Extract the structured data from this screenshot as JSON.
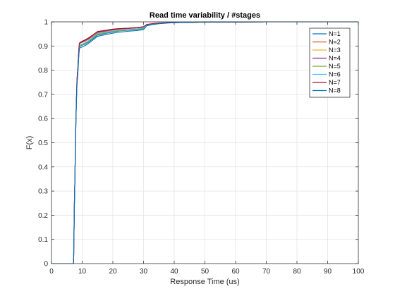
{
  "chart_data": {
    "type": "line",
    "title": "Read time variability / #stages",
    "xlabel": "Response Time (us)",
    "ylabel": "F(x)",
    "xlim": [
      0,
      100
    ],
    "ylim": [
      0,
      1
    ],
    "x_ticks": [
      0,
      10,
      20,
      30,
      40,
      50,
      60,
      70,
      80,
      90,
      100
    ],
    "y_ticks": [
      0,
      0.1,
      0.2,
      0.3,
      0.4,
      0.5,
      0.6,
      0.7,
      0.8,
      0.9,
      1
    ],
    "grid": true,
    "legend_position": "top-right",
    "series": [
      {
        "name": "N=1",
        "color": "#0072BD",
        "x": [
          0,
          7.2,
          7.5,
          7.6,
          7.9,
          8.1,
          8.3,
          8.6,
          8.9,
          9.1,
          9.4,
          10,
          11,
          12,
          13,
          14,
          15,
          18,
          20,
          22,
          25,
          28,
          30,
          31,
          33,
          35,
          38,
          40,
          45,
          50,
          60,
          70,
          80,
          90,
          100
        ],
        "y": [
          0,
          0.0,
          0.28,
          0.33,
          0.55,
          0.66,
          0.74,
          0.79,
          0.86,
          0.895,
          0.9,
          0.903,
          0.908,
          0.915,
          0.925,
          0.935,
          0.945,
          0.953,
          0.958,
          0.962,
          0.965,
          0.968,
          0.972,
          0.985,
          0.99,
          0.993,
          0.996,
          0.997,
          0.998,
          0.999,
          0.9995,
          1,
          1,
          1,
          1
        ]
      },
      {
        "name": "N=2",
        "color": "#D95319",
        "x": [
          0,
          7.2,
          7.5,
          7.6,
          7.9,
          8.1,
          8.3,
          8.6,
          8.9,
          9.1,
          9.4,
          10,
          11,
          12,
          13,
          14,
          15,
          18,
          20,
          22,
          25,
          28,
          30,
          31,
          33,
          35,
          38,
          40,
          45,
          50,
          60,
          70,
          80,
          90,
          100
        ],
        "y": [
          0,
          0.0,
          0.28,
          0.33,
          0.56,
          0.67,
          0.76,
          0.81,
          0.88,
          0.908,
          0.912,
          0.915,
          0.92,
          0.927,
          0.936,
          0.945,
          0.955,
          0.962,
          0.966,
          0.969,
          0.972,
          0.975,
          0.978,
          0.988,
          0.992,
          0.994,
          0.996,
          0.997,
          0.998,
          0.999,
          0.9995,
          1,
          1,
          1,
          1
        ]
      },
      {
        "name": "N=3",
        "color": "#EDB120",
        "x": [
          0,
          7.2,
          7.5,
          7.6,
          7.9,
          8.1,
          8.3,
          8.6,
          8.9,
          9.1,
          9.4,
          10,
          11,
          12,
          13,
          14,
          15,
          18,
          20,
          22,
          25,
          28,
          30,
          31,
          33,
          35,
          38,
          40,
          45,
          50,
          60,
          70,
          80,
          90,
          100
        ],
        "y": [
          0,
          0.0,
          0.28,
          0.33,
          0.55,
          0.665,
          0.75,
          0.8,
          0.87,
          0.9,
          0.904,
          0.907,
          0.912,
          0.92,
          0.93,
          0.94,
          0.95,
          0.958,
          0.962,
          0.965,
          0.968,
          0.971,
          0.975,
          0.986,
          0.991,
          0.993,
          0.996,
          0.997,
          0.998,
          0.999,
          0.9995,
          1,
          1,
          1,
          1
        ]
      },
      {
        "name": "N=4",
        "color": "#7E2F8E",
        "x": [
          0,
          7.2,
          7.5,
          7.6,
          7.9,
          8.1,
          8.3,
          8.6,
          8.9,
          9.1,
          9.4,
          10,
          11,
          12,
          13,
          14,
          15,
          18,
          20,
          22,
          25,
          28,
          30,
          31,
          33,
          35,
          38,
          40,
          45,
          50,
          60,
          70,
          80,
          90,
          100
        ],
        "y": [
          0,
          0.0,
          0.28,
          0.33,
          0.56,
          0.67,
          0.76,
          0.81,
          0.885,
          0.91,
          0.914,
          0.918,
          0.924,
          0.93,
          0.94,
          0.95,
          0.958,
          0.964,
          0.968,
          0.971,
          0.973,
          0.976,
          0.979,
          0.989,
          0.992,
          0.994,
          0.996,
          0.997,
          0.998,
          0.999,
          0.9995,
          1,
          1,
          1,
          1
        ]
      },
      {
        "name": "N=5",
        "color": "#77AC30",
        "x": [
          0,
          7.2,
          7.5,
          7.6,
          7.9,
          8.1,
          8.3,
          8.6,
          8.9,
          9.1,
          9.4,
          10,
          11,
          12,
          13,
          14,
          15,
          18,
          20,
          22,
          25,
          28,
          30,
          31,
          33,
          35,
          38,
          40,
          45,
          50,
          60,
          70,
          80,
          90,
          100
        ],
        "y": [
          0,
          0.0,
          0.28,
          0.33,
          0.55,
          0.665,
          0.75,
          0.8,
          0.87,
          0.898,
          0.902,
          0.905,
          0.91,
          0.918,
          0.928,
          0.938,
          0.948,
          0.955,
          0.96,
          0.963,
          0.966,
          0.969,
          0.973,
          0.985,
          0.99,
          0.993,
          0.996,
          0.997,
          0.998,
          0.999,
          0.9995,
          1,
          1,
          1,
          1
        ]
      },
      {
        "name": "N=6",
        "color": "#4DBEEE",
        "x": [
          0,
          7.2,
          7.5,
          7.6,
          7.9,
          8.1,
          8.3,
          8.6,
          8.9,
          9.1,
          9.4,
          10,
          11,
          12,
          13,
          14,
          15,
          18,
          20,
          22,
          25,
          28,
          30,
          31,
          33,
          35,
          38,
          40,
          45,
          50,
          60,
          70,
          80,
          90,
          100
        ],
        "y": [
          0,
          0.0,
          0.28,
          0.33,
          0.55,
          0.665,
          0.75,
          0.8,
          0.875,
          0.9,
          0.905,
          0.908,
          0.914,
          0.921,
          0.931,
          0.941,
          0.951,
          0.958,
          0.962,
          0.965,
          0.968,
          0.971,
          0.975,
          0.986,
          0.991,
          0.993,
          0.996,
          0.997,
          0.998,
          0.999,
          0.9995,
          1,
          1,
          1,
          1
        ]
      },
      {
        "name": "N=7",
        "color": "#A2142F",
        "x": [
          0,
          7.2,
          7.5,
          7.6,
          7.9,
          8.1,
          8.3,
          8.6,
          8.9,
          9.1,
          9.4,
          10,
          11,
          12,
          13,
          14,
          15,
          18,
          20,
          22,
          25,
          28,
          30,
          31,
          33,
          35,
          38,
          40,
          45,
          50,
          60,
          70,
          80,
          90,
          100
        ],
        "y": [
          0,
          0.0,
          0.28,
          0.33,
          0.56,
          0.67,
          0.76,
          0.81,
          0.885,
          0.912,
          0.916,
          0.92,
          0.926,
          0.933,
          0.942,
          0.951,
          0.96,
          0.966,
          0.97,
          0.972,
          0.974,
          0.977,
          0.98,
          0.989,
          0.993,
          0.995,
          0.997,
          0.998,
          0.998,
          0.999,
          0.9995,
          1,
          1,
          1,
          1
        ]
      },
      {
        "name": "N=8",
        "color": "#0072BD",
        "x": [
          0,
          7.2,
          7.5,
          7.6,
          7.9,
          8.1,
          8.3,
          8.6,
          8.9,
          9.1,
          9.4,
          10,
          11,
          12,
          13,
          14,
          15,
          18,
          20,
          22,
          25,
          28,
          30,
          31,
          33,
          35,
          38,
          40,
          45,
          50,
          60,
          70,
          80,
          90,
          100
        ],
        "y": [
          0,
          0.0,
          0.28,
          0.33,
          0.55,
          0.66,
          0.74,
          0.79,
          0.86,
          0.89,
          0.893,
          0.896,
          0.902,
          0.91,
          0.92,
          0.93,
          0.94,
          0.948,
          0.953,
          0.957,
          0.961,
          0.964,
          0.968,
          0.983,
          0.989,
          0.992,
          0.995,
          0.997,
          0.998,
          0.999,
          0.9995,
          1,
          1,
          1,
          1
        ]
      }
    ]
  }
}
